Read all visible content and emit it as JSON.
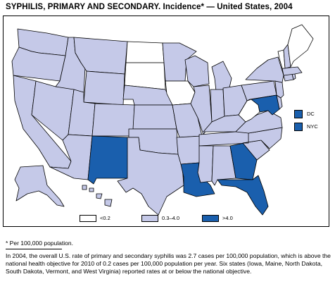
{
  "title": "SYPHILIS, PRIMARY AND SECONDARY. Incidence* — United States, 2004",
  "colors": {
    "low": "#ffffff",
    "mid": "#c5c9e8",
    "high": "#1a5fad",
    "border": "#000000"
  },
  "legend": {
    "categories": [
      {
        "key": "low",
        "label": "<0.2",
        "color": "#ffffff"
      },
      {
        "key": "mid",
        "label": "0.3–4.0",
        "color": "#c5c9e8"
      },
      {
        "key": "high",
        "label": ">4.0",
        "color": "#1a5fad"
      }
    ],
    "insets": [
      {
        "label": "DC",
        "category": "high"
      },
      {
        "label": "NYC",
        "category": "high"
      }
    ]
  },
  "states": {
    "WA": "mid",
    "OR": "mid",
    "CA": "mid",
    "ID": "mid",
    "NV": "mid",
    "MT": "mid",
    "WY": "mid",
    "UT": "mid",
    "AZ": "mid",
    "CO": "mid",
    "NM": "high",
    "ND": "low",
    "SD": "low",
    "NE": "mid",
    "KS": "mid",
    "OK": "mid",
    "TX": "mid",
    "MN": "mid",
    "IA": "low",
    "MO": "mid",
    "AR": "mid",
    "LA": "high",
    "WI": "mid",
    "IL": "mid",
    "MI": "mid",
    "IN": "mid",
    "OH": "mid",
    "KY": "mid",
    "TN": "mid",
    "MS": "mid",
    "AL": "mid",
    "GA": "high",
    "FL": "high",
    "SC": "mid",
    "NC": "mid",
    "VA": "mid",
    "WV": "low",
    "MD": "high",
    "DE": "mid",
    "PA": "mid",
    "NJ": "mid",
    "NY": "mid",
    "CT": "mid",
    "RI": "mid",
    "MA": "mid",
    "VT": "low",
    "NH": "mid",
    "ME": "low",
    "AK": "mid",
    "HI": "mid"
  },
  "footnote": "* Per 100,000 population.",
  "caption": "In 2004, the overall U.S. rate of primary and secondary syphilis was 2.7 cases per 100,000 population, which is above the national health objective for 2010 of 0.2 cases per 100,000 population per year. Six states (Iowa, Maine, North Dakota, South Dakota, Vermont, and West Virginia) reported rates at or below the national objective."
}
